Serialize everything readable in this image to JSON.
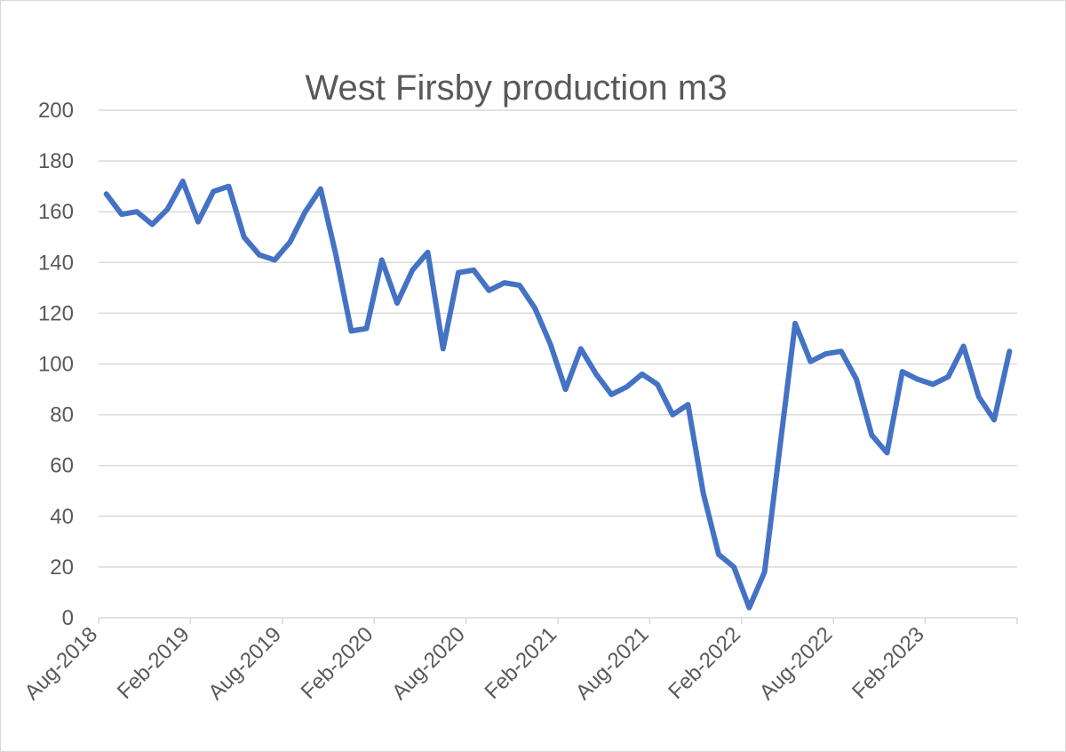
{
  "chart_data": {
    "type": "line",
    "title": "West Firsby production m3",
    "xlabel": "",
    "ylabel": "",
    "ylim": [
      0,
      200
    ],
    "y_ticks": [
      0,
      20,
      40,
      60,
      80,
      100,
      120,
      140,
      160,
      180,
      200
    ],
    "x_tick_labels": [
      "Aug-2018",
      "Feb-2019",
      "Aug-2019",
      "Feb-2020",
      "Aug-2020",
      "Feb-2021",
      "Aug-2021",
      "Feb-2022",
      "Aug-2022",
      "Feb-2023"
    ],
    "x_start": "Aug-2018",
    "x_end": "Jul-2023",
    "grid": true,
    "legend": "none",
    "line_color": "#4472C4",
    "series": [
      {
        "values": [
          167,
          159,
          160,
          155,
          161,
          172,
          156,
          168,
          170,
          150,
          143,
          141,
          148,
          160,
          169,
          143,
          113,
          114,
          141,
          124,
          137,
          144,
          106,
          136,
          137,
          129,
          132,
          131,
          122,
          108,
          90,
          106,
          96,
          88,
          91,
          96,
          92,
          80,
          84,
          49,
          25,
          20,
          4,
          18,
          67,
          116,
          101,
          104,
          105,
          94,
          72,
          65,
          97,
          94,
          92,
          95,
          107,
          87,
          78,
          105
        ]
      }
    ]
  }
}
